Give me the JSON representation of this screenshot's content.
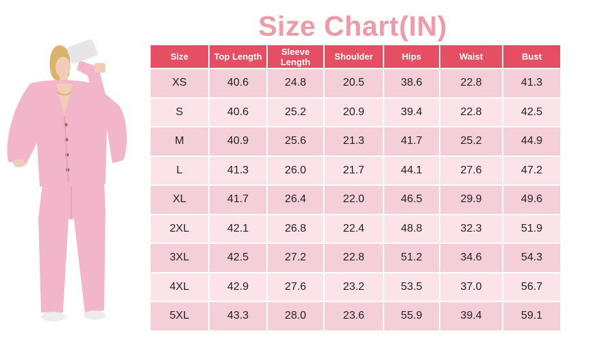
{
  "title": "Size Chart(IN)",
  "colors": {
    "title": "#ef9aa8",
    "header_bg": "#e64e64",
    "row_a": "#f4cfd7",
    "row_b": "#fbe3e7",
    "garment": "#f2b5c9"
  },
  "image": {
    "subject": "model-in-pink-knit-cardigan-and-wide-leg-pants"
  },
  "table": {
    "headers": [
      "Size",
      "Top Length",
      "Sleeve Length",
      "Shoulder",
      "Hips",
      "Waist",
      "Bust"
    ],
    "rows": [
      [
        "XS",
        "40.6",
        "24.8",
        "20.5",
        "38.6",
        "22.8",
        "41.3"
      ],
      [
        "S",
        "40.6",
        "25.2",
        "20.9",
        "39.4",
        "22.8",
        "42.5"
      ],
      [
        "M",
        "40.9",
        "25.6",
        "21.3",
        "41.7",
        "25.2",
        "44.9"
      ],
      [
        "L",
        "41.3",
        "26.0",
        "21.7",
        "44.1",
        "27.6",
        "47.2"
      ],
      [
        "XL",
        "41.7",
        "26.4",
        "22.0",
        "46.5",
        "29.9",
        "49.6"
      ],
      [
        "2XL",
        "42.1",
        "26.8",
        "22.4",
        "48.8",
        "32.3",
        "51.9"
      ],
      [
        "3XL",
        "42.5",
        "27.2",
        "22.8",
        "51.2",
        "34.6",
        "54.3"
      ],
      [
        "4XL",
        "42.9",
        "27.6",
        "23.2",
        "53.5",
        "37.0",
        "56.7"
      ],
      [
        "5XL",
        "43.3",
        "28.0",
        "23.6",
        "55.9",
        "39.4",
        "59.1"
      ]
    ]
  }
}
